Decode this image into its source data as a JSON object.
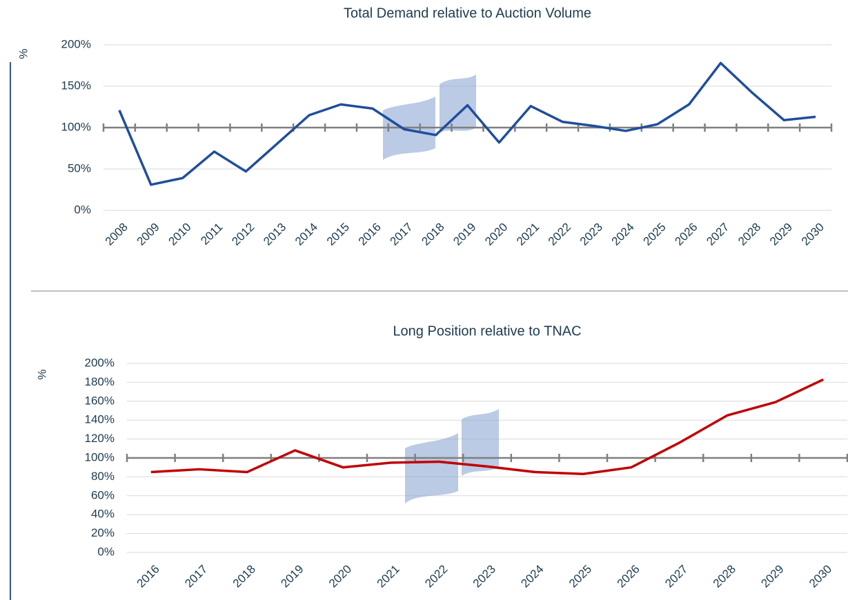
{
  "chart_data": [
    {
      "type": "line",
      "title": "Total Demand relative to Auction Volume",
      "y_label": "%",
      "categories": [
        "2008",
        "2009",
        "2010",
        "2011",
        "2012",
        "2013",
        "2014",
        "2015",
        "2016",
        "2017",
        "2018",
        "2019",
        "2020",
        "2021",
        "2022",
        "2023",
        "2024",
        "2025",
        "2026",
        "2027",
        "2028",
        "2029",
        "2030"
      ],
      "series": [
        {
          "color": "#1f4e9c",
          "values": [
            121,
            31,
            39,
            71,
            47,
            81,
            115,
            128,
            123,
            98,
            91,
            127,
            82,
            126,
            107,
            102,
            96,
            104,
            128,
            178,
            142,
            109,
            113
          ]
        }
      ],
      "ylim": [
        0,
        200
      ],
      "yticks": [
        {
          "value": 0,
          "label": "0%"
        },
        {
          "value": 50,
          "label": "50%"
        },
        {
          "value": 100,
          "label": "100%"
        },
        {
          "value": 150,
          "label": "150%"
        },
        {
          "value": 200,
          "label": "200%"
        }
      ],
      "reference_line": 100,
      "grid": true
    },
    {
      "type": "line",
      "title": "Long Position relative to TNAC",
      "y_label": "%",
      "categories": [
        "2016",
        "2017",
        "2018",
        "2019",
        "2020",
        "2021",
        "2022",
        "2023",
        "2024",
        "2025",
        "2026",
        "2027",
        "2028",
        "2029",
        "2030"
      ],
      "series": [
        {
          "color": "#c00000",
          "values": [
            85,
            88,
            85,
            108,
            90,
            95,
            96,
            91,
            85,
            83,
            90,
            116,
            145,
            159,
            183
          ]
        }
      ],
      "ylim": [
        0,
        200
      ],
      "yticks": [
        {
          "value": 0,
          "label": "0%"
        },
        {
          "value": 20,
          "label": "20%"
        },
        {
          "value": 40,
          "label": "40%"
        },
        {
          "value": 60,
          "label": "60%"
        },
        {
          "value": 80,
          "label": "80%"
        },
        {
          "value": 100,
          "label": "100%"
        },
        {
          "value": 120,
          "label": "120%"
        },
        {
          "value": 140,
          "label": "140%"
        },
        {
          "value": 160,
          "label": "160%"
        },
        {
          "value": 180,
          "label": "180%"
        },
        {
          "value": 200,
          "label": "200%"
        }
      ],
      "reference_line": 100,
      "grid": true
    }
  ]
}
